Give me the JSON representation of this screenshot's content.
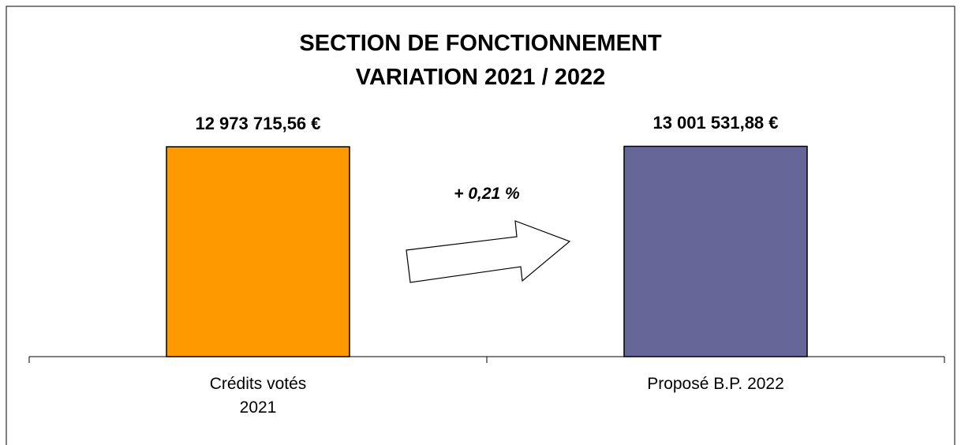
{
  "chart_data": {
    "type": "bar",
    "title": "SECTION DE FONCTIONNEMENT\nVARIATION 2021 / 2022",
    "categories": [
      "Crédits votés\n2021",
      "Proposé B.P. 2022"
    ],
    "values": [
      12973715.56,
      13001531.88
    ],
    "value_labels": [
      "12 973 715,56 €",
      "13 001 531,88 €"
    ],
    "colors": [
      "#ff9900",
      "#666699"
    ],
    "annotation": "+ 0,21 %",
    "ylim": [
      0,
      14000000
    ]
  }
}
